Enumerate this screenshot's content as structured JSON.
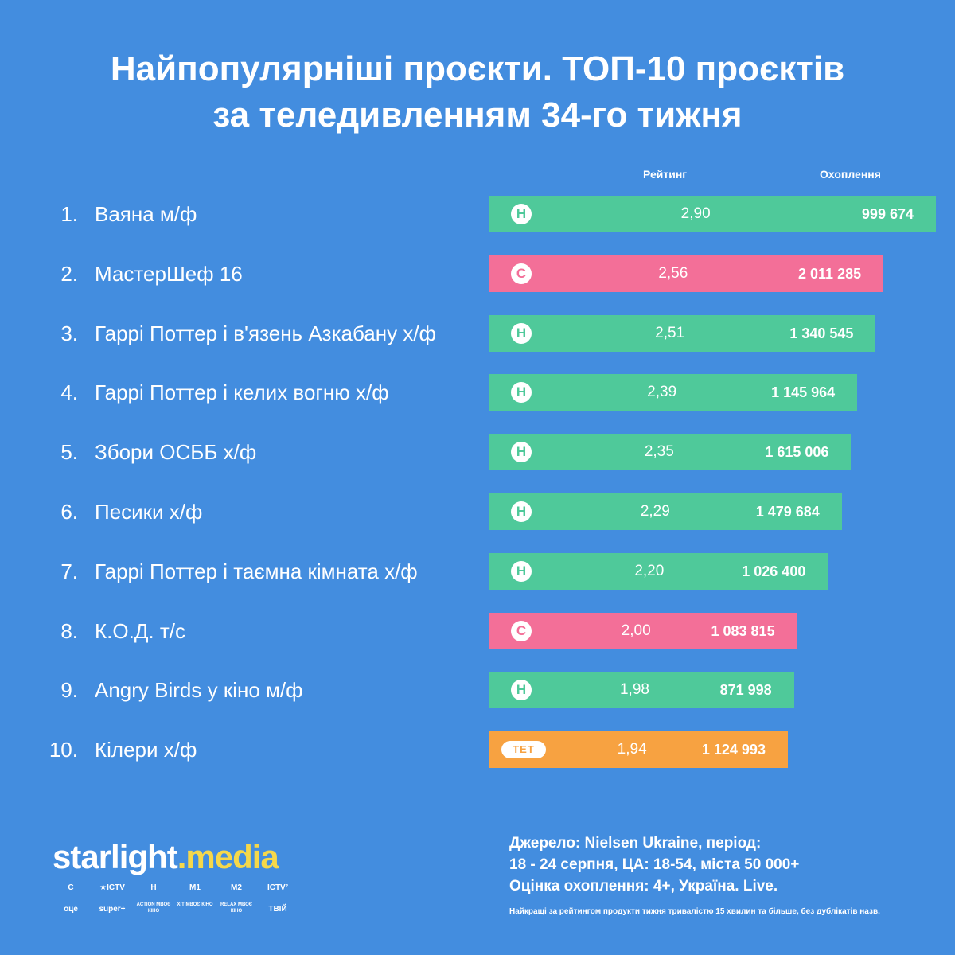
{
  "title_line1": "Найпопулярніші проєкти. ТОП-10 проєктів",
  "title_line2": "за теледивленням 34-го тижня",
  "column_rating": "Рейтинг",
  "column_reach": "Охоплення",
  "colors": {
    "background": "#438ddf",
    "channel_n": "#4fc99a",
    "channel_stb": "#f36f98",
    "channel_tet": "#f7a241",
    "brand_accent": "#f6d84a"
  },
  "chart_data": {
    "type": "bar",
    "title": "Найпопулярніші проєкти. ТОП-10 проєктів за теледивленням 34-го тижня",
    "orientation": "horizontal",
    "categories": [
      "Ваяна м/ф",
      "МастерШеф 16",
      "Гаррі Поттер і в'язень Азкабану х/ф",
      "Гаррі Поттер і келих вогню х/ф",
      "Збори ОСББ х/ф",
      "Песики х/ф",
      "Гаррі Поттер і таємна кімната х/ф",
      "К.О.Д. т/с",
      "Angry Birds у кіно м/ф",
      "Кілери х/ф"
    ],
    "series": [
      {
        "name": "Рейтинг",
        "values": [
          2.9,
          2.56,
          2.51,
          2.39,
          2.35,
          2.29,
          2.2,
          2.0,
          1.98,
          1.94
        ]
      },
      {
        "name": "Охоплення",
        "values": [
          999674,
          2011285,
          1340545,
          1145964,
          1615006,
          1479684,
          1026400,
          1083815,
          871998,
          1124993
        ]
      }
    ]
  },
  "rows": [
    {
      "rank": "1.",
      "name": "Ваяна м/ф",
      "channel": "n-icon",
      "logo": "Н",
      "rating": "2,90",
      "rating_value": 2.9,
      "reach": "999 674"
    },
    {
      "rank": "2.",
      "name": "МастерШеф 16",
      "channel": "stb-icon",
      "logo": "С",
      "rating": "2,56",
      "rating_value": 2.56,
      "reach": "2 011 285"
    },
    {
      "rank": "3.",
      "name": "Гаррі Поттер і в'язень Азкабану х/ф",
      "channel": "n-icon",
      "logo": "Н",
      "rating": "2,51",
      "rating_value": 2.51,
      "reach": "1 340 545"
    },
    {
      "rank": "4.",
      "name": "Гаррі Поттер і келих вогню х/ф",
      "channel": "n-icon",
      "logo": "Н",
      "rating": "2,39",
      "rating_value": 2.39,
      "reach": "1 145 964"
    },
    {
      "rank": "5.",
      "name": "Збори ОСББ х/ф",
      "channel": "n-icon",
      "logo": "Н",
      "rating": "2,35",
      "rating_value": 2.35,
      "reach": "1 615 006"
    },
    {
      "rank": "6.",
      "name": "Песики х/ф",
      "channel": "n-icon",
      "logo": "Н",
      "rating": "2,29",
      "rating_value": 2.29,
      "reach": "1 479 684"
    },
    {
      "rank": "7.",
      "name": "Гаррі Поттер і таємна кімната х/ф",
      "channel": "n-icon",
      "logo": "Н",
      "rating": "2,20",
      "rating_value": 2.2,
      "reach": "1 026 400"
    },
    {
      "rank": "8.",
      "name": "К.О.Д. т/с",
      "channel": "stb-icon",
      "logo": "С",
      "rating": "2,00",
      "rating_value": 2.0,
      "reach": "1 083 815"
    },
    {
      "rank": "9.",
      "name": "Angry Birds у кіно м/ф",
      "channel": "n-icon",
      "logo": "Н",
      "rating": "1,98",
      "rating_value": 1.98,
      "reach": "871 998"
    },
    {
      "rank": "10.",
      "name": "Кілери х/ф",
      "channel": "tet-icon",
      "logo": "ТЕТ",
      "rating": "1,94",
      "rating_value": 1.94,
      "reach": "1 124 993"
    }
  ],
  "brand": {
    "part1": "starlight",
    "dot": ".",
    "part2": "media"
  },
  "channels_row1": [
    {
      "icon": "stb-logo-icon",
      "label": "С"
    },
    {
      "icon": "ictv-logo-icon",
      "label": "★ICTV"
    },
    {
      "icon": "novyi-logo-icon",
      "label": "Н"
    },
    {
      "icon": "m1-logo-icon",
      "label": "M1"
    },
    {
      "icon": "m2-logo-icon",
      "label": "M2"
    },
    {
      "icon": "ictv2-logo-icon",
      "label": "ICTV²"
    }
  ],
  "channels_row2": [
    {
      "icon": "otse-logo-icon",
      "label": "оце"
    },
    {
      "icon": "superplus-logo-icon",
      "label": "super+"
    },
    {
      "icon": "action-mvoe-kino-logo-icon",
      "label": "ACTION МВОЄ КІНО"
    },
    {
      "icon": "hit-mvoe-kino-logo-icon",
      "label": "ХІТ МВОЄ КІНО"
    },
    {
      "icon": "relax-mvoe-kino-logo-icon",
      "label": "RELAX МВОЄ КІНО"
    },
    {
      "icon": "tviy-logo-icon",
      "label": "ТВІЙ"
    }
  ],
  "source_line1": "Джерело: Nielsen Ukraine, період:",
  "source_line2": "18 - 24 серпня, ЦА: 18-54, міста 50 000+",
  "source_line3": "Оцінка охоплення: 4+, Україна. Live.",
  "footnote": "Найкращі за рейтингом продукти тижня тривалістю 15 хвилин та більше, без дублікатів назв."
}
